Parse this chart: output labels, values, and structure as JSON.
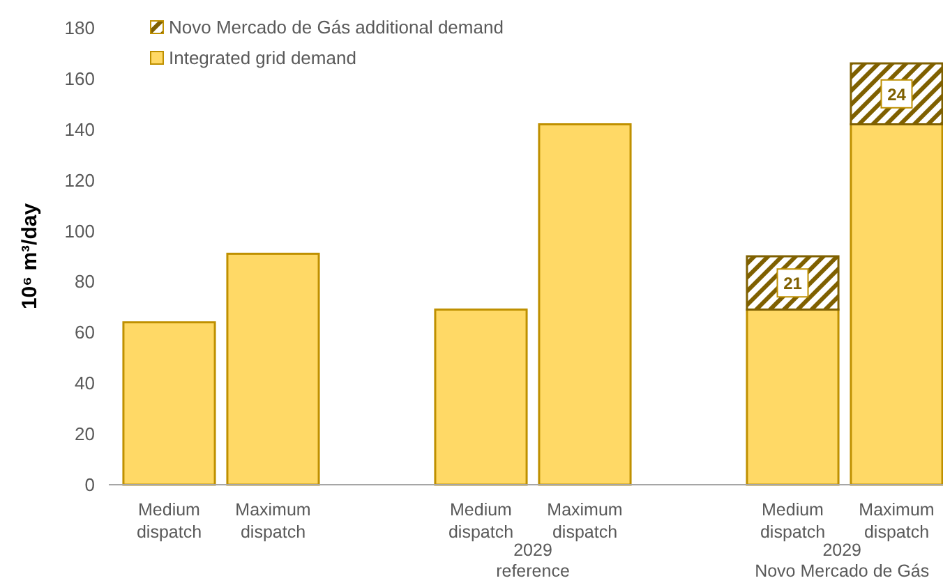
{
  "chart_data": {
    "type": "bar",
    "stacked": true,
    "ylabel": "10⁶ m³/day",
    "categories": [
      "Medium dispatch",
      "Maximum dispatch",
      null,
      "Medium dispatch",
      "Maximum dispatch",
      null,
      "Medium dispatch",
      "Maximum dispatch"
    ],
    "series": [
      {
        "name": "Integrated grid demand",
        "color": "#ffd966",
        "values": [
          64,
          91,
          null,
          69,
          142,
          null,
          69,
          142
        ]
      },
      {
        "name": "Novo Mercado de Gás additional demand",
        "color": "#7f6000",
        "values": [
          null,
          null,
          null,
          null,
          null,
          null,
          21,
          24
        ],
        "value_labels": [
          null,
          null,
          null,
          null,
          null,
          null,
          "21",
          "24"
        ]
      }
    ],
    "ylim": [
      0,
      180
    ],
    "yticks": [
      0,
      20,
      40,
      60,
      80,
      100,
      120,
      140,
      160,
      180
    ],
    "grid": false,
    "legend": "top",
    "annotations": [
      "2029 reference",
      "2029 Novo Mercado de Gás"
    ]
  }
}
